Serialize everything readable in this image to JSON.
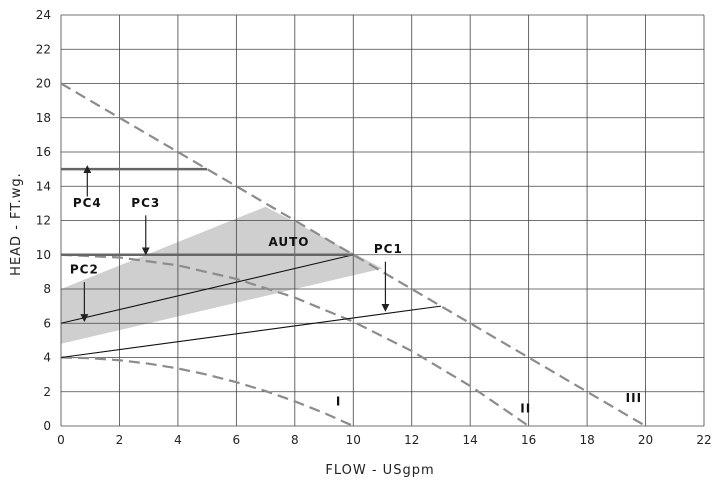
{
  "chart_data": {
    "type": "line",
    "xlabel": "FLOW - USgpm",
    "ylabel": "HEAD - FT.wg.",
    "xlim": [
      0,
      22
    ],
    "ylim": [
      0,
      24
    ],
    "xticks": [
      0,
      2,
      4,
      6,
      8,
      10,
      12,
      14,
      16,
      18,
      20,
      22
    ],
    "yticks": [
      0,
      2,
      4,
      6,
      8,
      10,
      12,
      14,
      16,
      18,
      20,
      22,
      24
    ],
    "grid": true,
    "colors": {
      "curve": "#8c8c8c",
      "line": "#111111",
      "band": "#cfcfcf",
      "grid": "#444444"
    },
    "series": [
      {
        "label": "I",
        "style": "dashed",
        "x": [
          0,
          1,
          2,
          3,
          4,
          5,
          6,
          7,
          8,
          9,
          10
        ],
        "y": [
          4.0,
          3.96,
          3.84,
          3.64,
          3.36,
          3.0,
          2.56,
          2.04,
          1.44,
          0.76,
          0
        ]
      },
      {
        "label": "II",
        "style": "dashed",
        "x": [
          0,
          2,
          4,
          6,
          8,
          10,
          12,
          14,
          16
        ],
        "y": [
          10.0,
          9.84,
          9.38,
          8.59,
          7.5,
          6.09,
          4.38,
          2.34,
          0
        ]
      },
      {
        "label": "III",
        "style": "dashed",
        "x": [
          0,
          5,
          10,
          13,
          20
        ],
        "y": [
          20,
          15,
          10,
          7,
          0
        ]
      },
      {
        "label": "AUTO",
        "style": "solid",
        "x": [
          0,
          10
        ],
        "y": [
          6,
          10
        ]
      },
      {
        "label": "PC1",
        "style": "solid",
        "x": [
          0,
          13
        ],
        "y": [
          4,
          7
        ]
      },
      {
        "label": "PC3",
        "style": "solid-thick",
        "x": [
          0,
          10
        ],
        "y": [
          10,
          10
        ]
      },
      {
        "label": "PC4",
        "style": "solid-thick",
        "x": [
          0,
          5
        ],
        "y": [
          15,
          15
        ]
      }
    ],
    "auto_band": {
      "x": [
        0,
        7,
        11,
        0
      ],
      "y": [
        8,
        12.8,
        9.2,
        4.8
      ]
    },
    "annotations": [
      {
        "text": "AUTO",
        "x": 7.8,
        "y": 10.5
      },
      {
        "text": "PC1",
        "x": 11.2,
        "y": 10.1,
        "arrow": {
          "from": [
            11.1,
            9.6
          ],
          "to": [
            11.1,
            6.9
          ]
        }
      },
      {
        "text": "PC2",
        "x": 0.8,
        "y": 8.9,
        "arrow": {
          "from": [
            0.8,
            8.4
          ],
          "to": [
            0.8,
            6.3
          ]
        }
      },
      {
        "text": "PC3",
        "x": 2.9,
        "y": 12.8,
        "arrow": {
          "from": [
            2.9,
            12.3
          ],
          "to": [
            2.9,
            10.2
          ]
        }
      },
      {
        "text": "PC4",
        "x": 0.9,
        "y": 12.8,
        "arrow": {
          "from": [
            0.9,
            13.4
          ],
          "to": [
            0.9,
            15.0
          ]
        }
      },
      {
        "text": "I",
        "x": 9.5,
        "y": 1.2
      },
      {
        "text": "II",
        "x": 15.9,
        "y": 0.8
      },
      {
        "text": "III",
        "x": 19.6,
        "y": 1.4
      }
    ]
  }
}
